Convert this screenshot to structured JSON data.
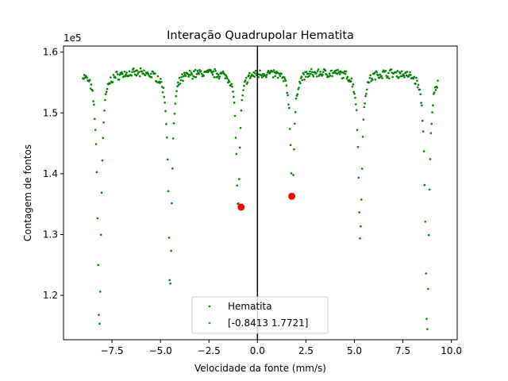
{
  "chart_data": {
    "type": "scatter",
    "title": "Interação Quadrupolar Hematita",
    "xlabel": "Velocidade da fonte (mm/s)",
    "ylabel": "Contagem de fontos",
    "y_offset_label": "1e5",
    "xlim": [
      -10.0,
      10.3
    ],
    "ylim": [
      112700,
      161000
    ],
    "x_ticks": [
      -7.5,
      -5.0,
      -2.5,
      0.0,
      2.5,
      5.0,
      7.5,
      10.0
    ],
    "x_tick_labels": [
      "−7.5",
      "−5.0",
      "−2.5",
      "0.0",
      "2.5",
      "5.0",
      "7.5",
      "10.0"
    ],
    "y_ticks": [
      120000,
      130000,
      140000,
      150000,
      160000
    ],
    "y_tick_labels": [
      "1.2",
      "1.3",
      "1.4",
      "1.5",
      "1.6"
    ],
    "vertical_line_x": 0.0,
    "baseline": 156800,
    "x_range": [
      -9.0,
      9.3
    ],
    "absorption_lines": [
      {
        "center": -8.15,
        "min_count": 114800
      },
      {
        "center": -4.5,
        "min_count": 121900
      },
      {
        "center": -1.0,
        "min_count": 134500
      },
      {
        "center": 1.8,
        "min_count": 136200
      },
      {
        "center": 5.3,
        "min_count": 129900
      },
      {
        "center": 8.75,
        "min_count": 113700
      }
    ],
    "series": [
      {
        "name": "Hematita",
        "color": "#008000"
      },
      {
        "name": "[-0.8413  1.7721]",
        "color": "#1f77b4"
      }
    ],
    "highlighted_points": {
      "color": "#ff0000",
      "points": [
        {
          "x": -0.84,
          "y": 134500
        },
        {
          "x": 1.77,
          "y": 136300
        }
      ]
    },
    "legend_position": "lower center",
    "grid": false
  }
}
